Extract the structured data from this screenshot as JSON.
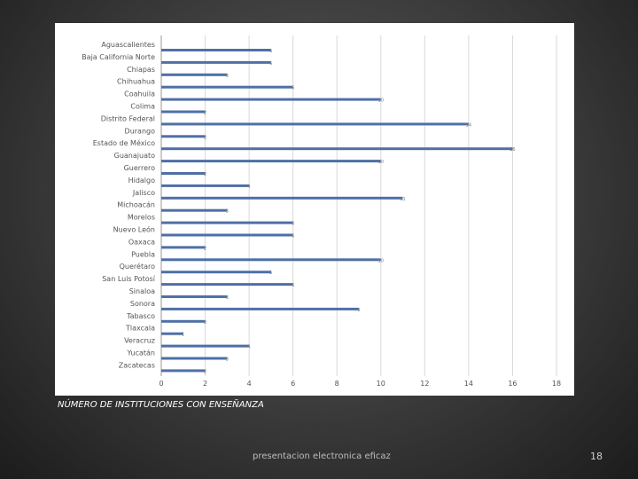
{
  "slide": {
    "footer": "presentacion electronica eficaz",
    "page_number": "18"
  },
  "chart_data": {
    "type": "bar",
    "orientation": "horizontal",
    "title": "",
    "xlabel": "NÚMERO DE INSTITUCIONES CON ENSEÑANZA",
    "ylabel": "",
    "xlim": [
      0,
      18
    ],
    "xticks": [
      0,
      2,
      4,
      6,
      8,
      10,
      12,
      14,
      16,
      18
    ],
    "grid": "vertical",
    "legend": "none",
    "bar_color": "#4f6fa6",
    "categories": [
      "Aguascalientes",
      "Baja California Norte",
      "Chiapas",
      "Chihuahua",
      "Coahuila",
      "Colima",
      "Distrito Federal",
      "Durango",
      "Estado de México",
      "Guanajuato",
      "Guerrero",
      "Hidalgo",
      "Jalisco",
      "Michoacán",
      "Morelos",
      "Nuevo León",
      "Oaxaca",
      "Puebla",
      "Querétaro",
      "San Luis Potosí",
      "Sinaloa",
      "Sonora",
      "Tabasco",
      "Tlaxcala",
      "Veracruz",
      "Yucatán",
      "Zacatecas"
    ],
    "values": [
      5,
      5,
      3,
      6,
      10,
      2,
      14,
      2,
      16,
      10,
      2,
      4,
      11,
      3,
      6,
      6,
      2,
      10,
      5,
      6,
      3,
      9,
      2,
      1,
      4,
      3,
      2
    ]
  }
}
